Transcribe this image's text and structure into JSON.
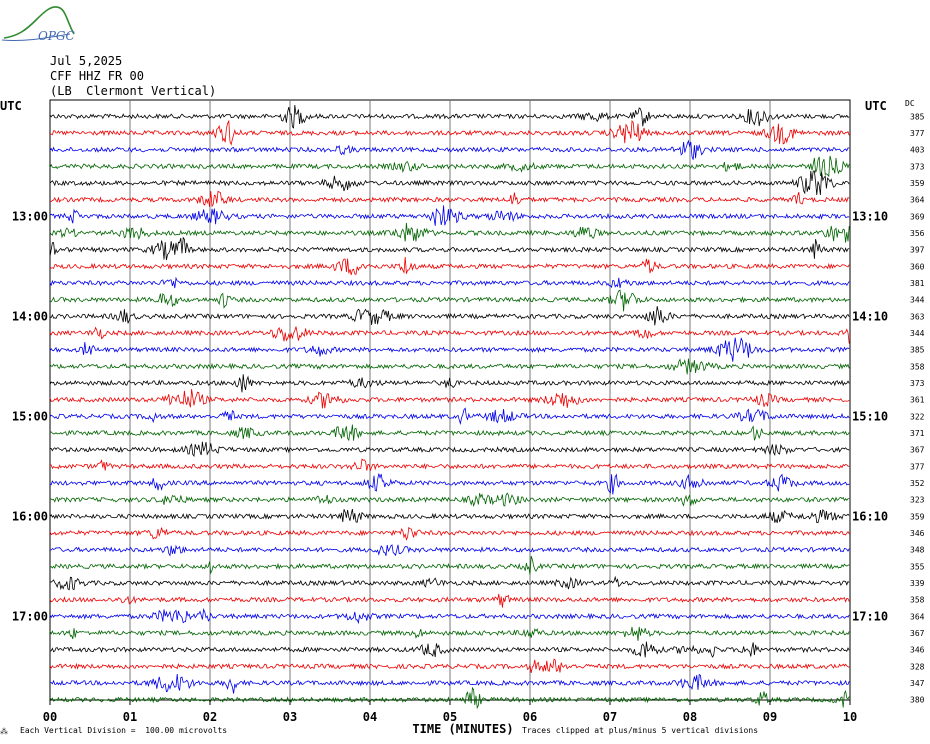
{
  "logo": {
    "text": "OPGC"
  },
  "header": {
    "date": "Jul 5,2025",
    "station": "CFF HHZ FR 00",
    "location": "(LB  Clermont Vertical)"
  },
  "footer": {
    "scale_note": "Each Vertical Division =  100.00 microvolts",
    "clip_note": "Traces clipped at plus/minus 5 vertical divisions"
  },
  "chart_data": {
    "type": "line",
    "title": "",
    "xlabel": "TIME (MINUTES)",
    "xlim": [
      0,
      10
    ],
    "x_ticks": [
      "00",
      "01",
      "02",
      "03",
      "04",
      "05",
      "06",
      "07",
      "08",
      "09",
      "10"
    ],
    "left_axis_title": "UTC",
    "right_axis_title": "UTC",
    "dc_label": "DC",
    "rows": 36,
    "minutes_per_row": 10,
    "trace_colors": [
      "#000000",
      "#ee0000",
      "#0000ee",
      "#006400"
    ],
    "left_time_labels": [
      {
        "row": 6,
        "label": "13:00"
      },
      {
        "row": 12,
        "label": "14:00"
      },
      {
        "row": 18,
        "label": "15:00"
      },
      {
        "row": 24,
        "label": "16:00"
      },
      {
        "row": 30,
        "label": "17:00"
      }
    ],
    "right_time_labels": [
      {
        "row": 6,
        "label": "13:10"
      },
      {
        "row": 12,
        "label": "14:10"
      },
      {
        "row": 18,
        "label": "15:10"
      },
      {
        "row": 24,
        "label": "16:10"
      },
      {
        "row": 30,
        "label": "17:10"
      }
    ],
    "dc_offsets": [
      385,
      377,
      403,
      373,
      359,
      364,
      369,
      356,
      397,
      360,
      381,
      344,
      363,
      344,
      385,
      358,
      373,
      361,
      322,
      371,
      367,
      377,
      352,
      323,
      359,
      346,
      348,
      355,
      339,
      358,
      364,
      367,
      346,
      328,
      347,
      380
    ]
  }
}
